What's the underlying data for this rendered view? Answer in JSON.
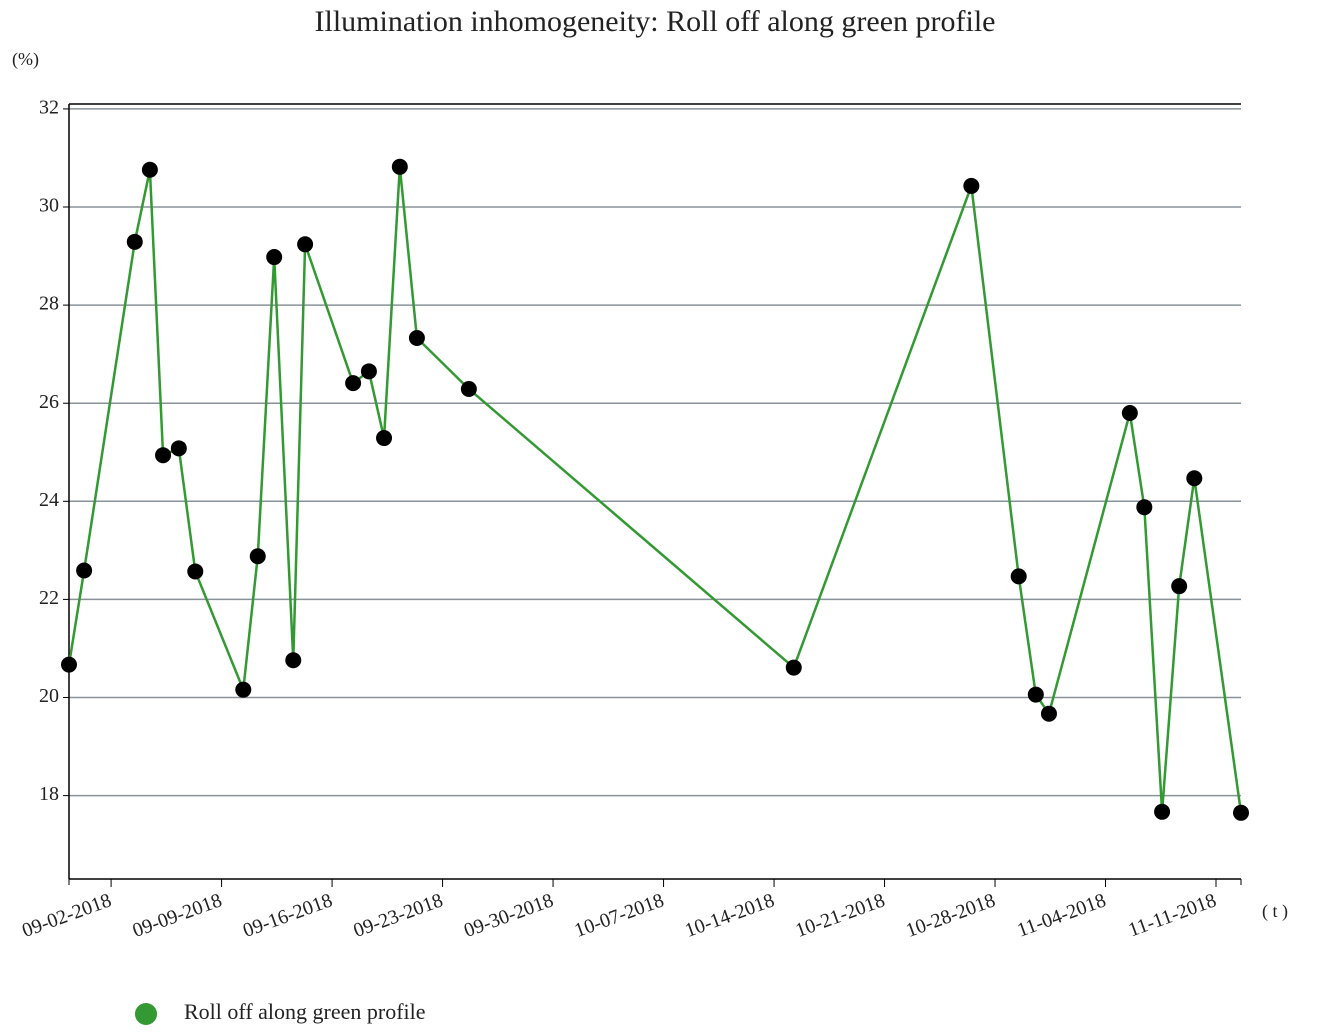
{
  "chart_data": {
    "type": "line",
    "title": "Illumination inhomogeneity: Roll off along green profile",
    "y_label": "(%)",
    "x_label": "( t )",
    "x": [
      "2018-08-30T08:00",
      "2018-08-31T07:00",
      "2018-09-03T12:00",
      "2018-09-04T11:00",
      "2018-09-05T07:00",
      "2018-09-06T07:00",
      "2018-09-07T08:00",
      "2018-09-10T09:00",
      "2018-09-11T07:00",
      "2018-09-12T08:00",
      "2018-09-13T13:00",
      "2018-09-14T07:00",
      "2018-09-17T08:00",
      "2018-09-18T08:00",
      "2018-09-19T07:00",
      "2018-09-20T07:00",
      "2018-09-21T09:00",
      "2018-09-24T16:00",
      "2018-10-15T06:00",
      "2018-10-26T12:00",
      "2018-10-29T12:00",
      "2018-10-30T14:00",
      "2018-10-31T10:00",
      "2018-11-05T13:00",
      "2018-11-06T11:00",
      "2018-11-07T14:00",
      "2018-11-08T16:00",
      "2018-11-09T15:00",
      "2018-11-12T14:00"
    ],
    "series": [
      {
        "name": "Roll off along green profile",
        "color": "#339933",
        "marker_color": "#000000",
        "values": [
          20.67,
          22.59,
          29.29,
          30.76,
          24.94,
          25.08,
          22.57,
          20.16,
          22.88,
          28.98,
          20.76,
          29.24,
          26.41,
          26.65,
          25.29,
          30.82,
          27.33,
          26.29,
          20.61,
          30.43,
          22.47,
          20.06,
          19.67,
          25.8,
          23.88,
          17.67,
          22.27,
          24.47,
          17.65
        ]
      }
    ],
    "xlim": [
      "2018-08-30T08:00",
      "2018-11-12T14:00"
    ],
    "xticks": [
      {
        "value": "2018-09-02T00:00",
        "label": "09-02-2018"
      },
      {
        "value": "2018-09-09T00:00",
        "label": "09-09-2018"
      },
      {
        "value": "2018-09-16T00:00",
        "label": "09-16-2018"
      },
      {
        "value": "2018-09-23T00:00",
        "label": "09-23-2018"
      },
      {
        "value": "2018-09-30T00:00",
        "label": "09-30-2018"
      },
      {
        "value": "2018-10-07T00:00",
        "label": "10-07-2018"
      },
      {
        "value": "2018-10-14T00:00",
        "label": "10-14-2018"
      },
      {
        "value": "2018-10-21T00:00",
        "label": "10-21-2018"
      },
      {
        "value": "2018-10-28T00:00",
        "label": "10-28-2018"
      },
      {
        "value": "2018-11-04T00:00",
        "label": "11-04-2018"
      },
      {
        "value": "2018-11-11T00:00",
        "label": "11-11-2018"
      }
    ],
    "ylim": [
      16.3,
      32.1
    ],
    "yticks": [
      18,
      20,
      22,
      24,
      26,
      28,
      30,
      32
    ],
    "grid": true,
    "legend": "bottom-left"
  }
}
